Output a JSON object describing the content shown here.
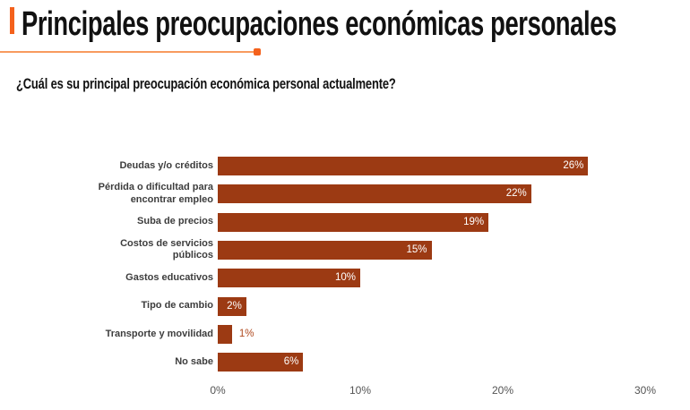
{
  "header": {
    "title": "Principales preocupaciones económicas personales",
    "subtitle": "¿Cuál es su principal preocupación económica personal actualmente?",
    "accent_color": "#F4611C",
    "underline_color": "#F89B5F"
  },
  "chart_data": {
    "type": "bar",
    "orientation": "horizontal",
    "categories": [
      "Deudas y/o créditos",
      "Pérdida o dificultad para encontrar empleo",
      "Suba de precios",
      "Costos de servicios públicos",
      "Gastos educativos",
      "Tipo de cambio",
      "Transporte y movilidad",
      "No sabe"
    ],
    "values": [
      26,
      22,
      19,
      15,
      10,
      2,
      1,
      6
    ],
    "value_labels": [
      "26%",
      "22%",
      "19%",
      "15%",
      "10%",
      "2%",
      "1%",
      "6%"
    ],
    "x_ticks": [
      "0%",
      "10%",
      "20%",
      "30%"
    ],
    "x_tick_values": [
      0,
      10,
      20,
      30
    ],
    "xlim": [
      0,
      30
    ],
    "grid": false,
    "legend": false,
    "bar_color": "#9C3A13",
    "value_label_color_inside": "#FFFFFF",
    "value_label_color_outside": "#B04A1F",
    "axis_label_color": "#545454"
  }
}
